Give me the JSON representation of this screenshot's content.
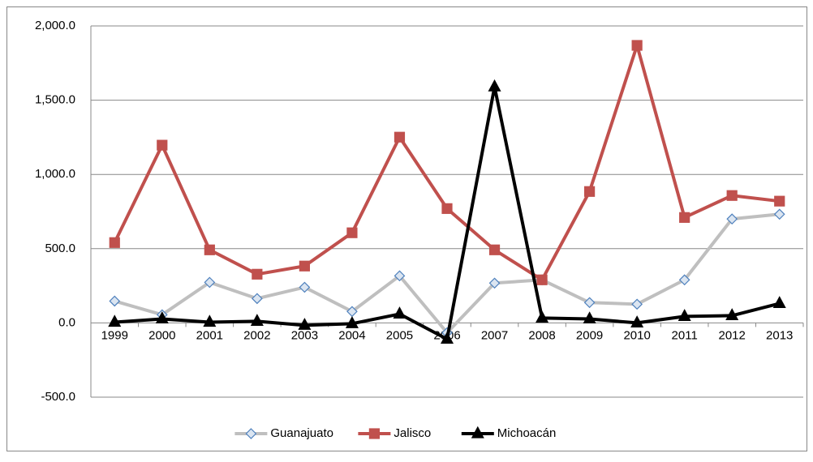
{
  "chart_data": {
    "type": "line",
    "categories": [
      "1999",
      "2000",
      "2001",
      "2002",
      "2003",
      "2004",
      "2005",
      "2006",
      "2007",
      "2008",
      "2009",
      "2010",
      "2011",
      "2012",
      "2013"
    ],
    "series": [
      {
        "name": "Guanajuato",
        "color": "#bfbfbf",
        "marker": "diamond",
        "marker_fill": "#dbe5f1",
        "marker_stroke": "#4f81bd",
        "values": [
          147,
          55,
          273,
          164,
          240,
          77,
          317,
          -66,
          268,
          290,
          137,
          126,
          290,
          700,
          732
        ]
      },
      {
        "name": "Jalisco",
        "color": "#c0504d",
        "marker": "square",
        "marker_fill": "#c0504d",
        "marker_stroke": "#c0504d",
        "values": [
          541,
          1197,
          492,
          328,
          383,
          607,
          1251,
          770,
          492,
          290,
          885,
          1869,
          710,
          858,
          820
        ]
      },
      {
        "name": "Michoacán",
        "color": "#000000",
        "marker": "triangle",
        "marker_fill": "#000000",
        "marker_stroke": "#000000",
        "values": [
          5,
          27,
          5,
          11,
          -16,
          -5,
          60,
          -109,
          1590,
          33,
          27,
          0,
          44,
          49,
          131
        ]
      }
    ],
    "ylim": [
      -500,
      2000
    ],
    "yticks": [
      {
        "value": -500,
        "label": "-500.0"
      },
      {
        "value": 0,
        "label": "0.0"
      },
      {
        "value": 500,
        "label": "500.0"
      },
      {
        "value": 1000,
        "label": "1,000.0"
      },
      {
        "value": 1500,
        "label": "1,500.0"
      },
      {
        "value": 2000,
        "label": "2,000.0"
      }
    ],
    "grid": true,
    "legend": "bottom"
  }
}
